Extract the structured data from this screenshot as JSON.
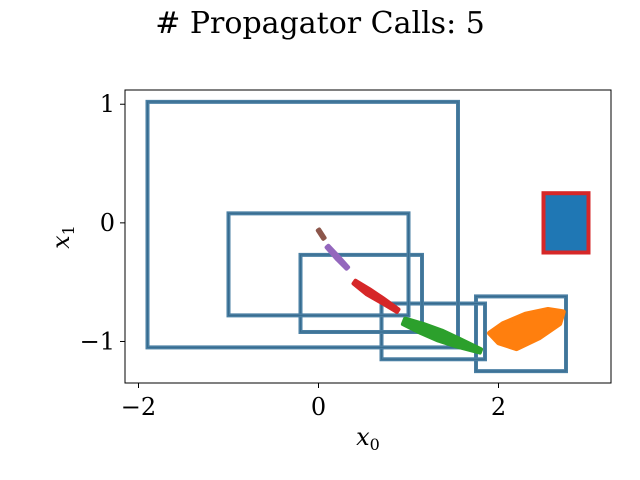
{
  "chart_data": {
    "type": "scatter",
    "title": "# Propagator Calls: 5",
    "xlabel": "x",
    "xlabel_sub": "0",
    "ylabel": "x",
    "ylabel_sub": "1",
    "xlim": [
      -2.15,
      3.25
    ],
    "ylim": [
      -1.35,
      1.12
    ],
    "xticks": [
      -2,
      0,
      2
    ],
    "xtick_labels": [
      "−2",
      "0",
      "2"
    ],
    "yticks": [
      -1,
      0,
      1
    ],
    "ytick_labels": [
      "−1",
      "0",
      "1"
    ],
    "grid": false,
    "colors": {
      "box_edge": "#4a7fa3",
      "initial_fill": "#1f77b4",
      "initial_edge": "#d62728"
    },
    "initial_set": {
      "x": [
        2.5,
        3.0
      ],
      "y": [
        -0.25,
        0.25
      ]
    },
    "reachable_boxes": [
      {
        "x": [
          1.75,
          2.75
        ],
        "y": [
          -1.25,
          -0.62
        ]
      },
      {
        "x": [
          0.7,
          1.85
        ],
        "y": [
          -1.15,
          -0.68
        ]
      },
      {
        "x": [
          -0.2,
          1.15
        ],
        "y": [
          -0.92,
          -0.27
        ]
      },
      {
        "x": [
          -1.0,
          1.0
        ],
        "y": [
          -0.78,
          0.08
        ]
      },
      {
        "x": [
          -1.9,
          1.55
        ],
        "y": [
          -1.05,
          1.02
        ]
      }
    ],
    "series": [
      {
        "color": "#ff7f0e",
        "shape": "polygon",
        "points": [
          [
            1.9,
            -0.93
          ],
          [
            2.05,
            -0.85
          ],
          [
            2.3,
            -0.77
          ],
          [
            2.55,
            -0.73
          ],
          [
            2.72,
            -0.75
          ],
          [
            2.68,
            -0.85
          ],
          [
            2.45,
            -0.97
          ],
          [
            2.2,
            -1.06
          ],
          [
            2.0,
            -1.01
          ]
        ]
      },
      {
        "color": "#2ca02c",
        "shape": "band",
        "points": [
          [
            0.95,
            -0.83
          ],
          [
            1.15,
            -0.89
          ],
          [
            1.35,
            -0.95
          ],
          [
            1.55,
            -1.01
          ],
          [
            1.8,
            -1.08
          ]
        ],
        "width": [
          0.05,
          0.08,
          0.09,
          0.07,
          0.03
        ]
      },
      {
        "color": "#d62728",
        "shape": "band",
        "points": [
          [
            0.4,
            -0.5
          ],
          [
            0.55,
            -0.58
          ],
          [
            0.7,
            -0.65
          ],
          [
            0.88,
            -0.74
          ]
        ],
        "width": [
          0.03,
          0.05,
          0.04,
          0.025
        ]
      },
      {
        "color": "#9467bd",
        "shape": "band",
        "points": [
          [
            0.1,
            -0.2
          ],
          [
            0.22,
            -0.3
          ],
          [
            0.32,
            -0.38
          ]
        ],
        "width": [
          0.02,
          0.025,
          0.018
        ]
      },
      {
        "color": "#8c564b",
        "shape": "band",
        "points": [
          [
            0.0,
            -0.06
          ],
          [
            0.06,
            -0.13
          ]
        ],
        "width": [
          0.015,
          0.015
        ]
      }
    ]
  }
}
